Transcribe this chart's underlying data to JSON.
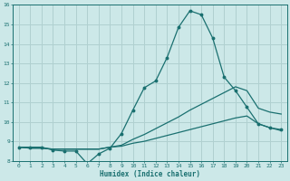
{
  "xlabel": "Humidex (Indice chaleur)",
  "xlim": [
    -0.5,
    23.5
  ],
  "ylim": [
    8,
    16
  ],
  "xticks": [
    0,
    1,
    2,
    3,
    4,
    5,
    6,
    7,
    8,
    9,
    10,
    11,
    12,
    13,
    14,
    15,
    16,
    17,
    18,
    19,
    20,
    21,
    22,
    23
  ],
  "yticks": [
    8,
    9,
    10,
    11,
    12,
    13,
    14,
    15,
    16
  ],
  "background_color": "#cce8e8",
  "grid_color": "#b0d0d0",
  "line_color": "#1a7070",
  "line1_y": [
    8.7,
    8.7,
    8.7,
    8.55,
    8.5,
    8.5,
    7.85,
    8.35,
    8.65,
    9.4,
    10.6,
    11.75,
    12.1,
    13.3,
    14.85,
    15.7,
    15.5,
    14.3,
    12.3,
    11.6,
    10.75,
    9.9,
    9.7,
    9.6
  ],
  "line2_y": [
    8.7,
    8.65,
    8.65,
    8.6,
    8.6,
    8.6,
    8.6,
    8.6,
    8.7,
    8.8,
    9.1,
    9.35,
    9.65,
    9.95,
    10.25,
    10.6,
    10.9,
    11.2,
    11.5,
    11.8,
    11.6,
    10.7,
    10.5,
    10.4
  ],
  "line3_y": [
    8.7,
    8.65,
    8.65,
    8.6,
    8.6,
    8.6,
    8.6,
    8.6,
    8.7,
    8.75,
    8.9,
    9.0,
    9.15,
    9.3,
    9.45,
    9.6,
    9.75,
    9.9,
    10.05,
    10.2,
    10.3,
    9.9,
    9.7,
    9.55
  ]
}
